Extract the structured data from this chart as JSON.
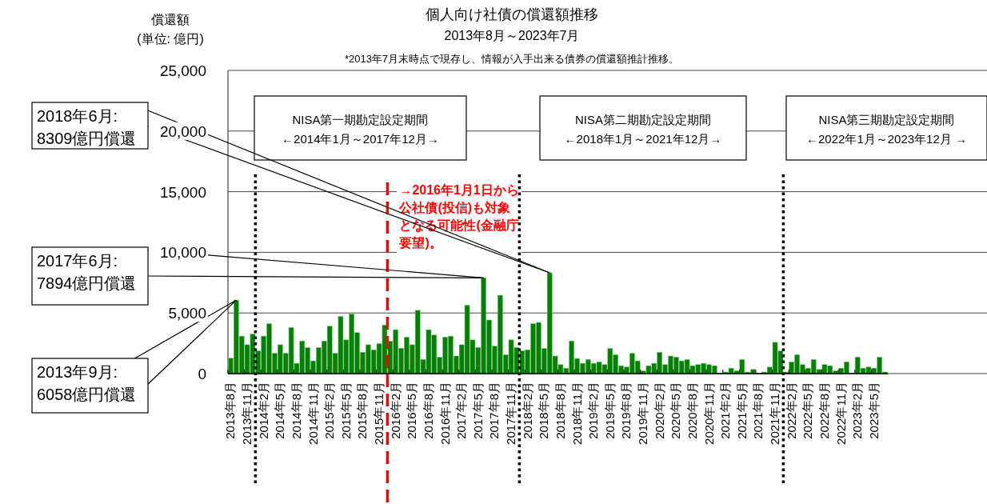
{
  "chart_data": {
    "type": "bar",
    "title": "個人向け社債の償還額推移",
    "subtitle": "2013年8月～2023年7月",
    "ylabel": "償還額\n(単位: 億円)",
    "annotations": [
      "*2013年7月末時点で現存し、情報が入手出来る債券の償還額推計推移。",
      "NISA第一期勘定設定期間\n←2014年1月～2017年12月→",
      "NISA第二期勘定設定期間\n←2018年1月～2021年12月→",
      "NISA第三期勘定設定期間\n←2022年1月～2023年12月 →",
      {
        "text": "2018年6月:\n8309億円償還",
        "x": "2018-06",
        "y": 8309
      },
      {
        "text": "2017年6月:\n7894億円償還",
        "x": "2017-06",
        "y": 7894
      },
      {
        "text": "2013年9月:\n6058億円償還",
        "x": "2013-09",
        "y": 6058
      }
    ],
    "x": [
      "2013-08",
      "2013-09",
      "2013-10",
      "2013-11",
      "2013-12",
      "2014-01",
      "2014-02",
      "2014-03",
      "2014-04",
      "2014-05",
      "2014-06",
      "2014-07",
      "2014-08",
      "2014-09",
      "2014-10",
      "2014-11",
      "2014-12",
      "2015-01",
      "2015-02",
      "2015-03",
      "2015-04",
      "2015-05",
      "2015-06",
      "2015-07",
      "2015-08",
      "2015-09",
      "2015-10",
      "2015-11",
      "2015-12",
      "2016-01",
      "2016-02",
      "2016-03",
      "2016-04",
      "2016-05",
      "2016-06",
      "2016-07",
      "2016-08",
      "2016-09",
      "2016-10",
      "2016-11",
      "2016-12",
      "2017-01",
      "2017-02",
      "2017-03",
      "2017-04",
      "2017-05",
      "2017-06",
      "2017-07",
      "2017-08",
      "2017-09",
      "2017-10",
      "2017-11",
      "2017-12",
      "2018-01",
      "2018-02",
      "2018-03",
      "2018-04",
      "2018-05",
      "2018-06",
      "2018-07",
      "2018-08",
      "2018-09",
      "2018-10",
      "2018-11",
      "2018-12",
      "2019-01",
      "2019-02",
      "2019-03",
      "2019-04",
      "2019-05",
      "2019-06",
      "2019-07",
      "2019-08",
      "2019-09",
      "2019-10",
      "2019-11",
      "2019-12",
      "2020-01",
      "2020-02",
      "2020-03",
      "2020-04",
      "2020-05",
      "2020-06",
      "2020-07",
      "2020-08",
      "2020-09",
      "2020-10",
      "2020-11",
      "2020-12",
      "2021-01",
      "2021-02",
      "2021-03",
      "2021-04",
      "2021-05",
      "2021-06",
      "2021-07",
      "2021-08",
      "2021-09",
      "2021-10",
      "2021-11",
      "2021-12",
      "2022-01",
      "2022-02",
      "2022-03",
      "2022-04",
      "2022-05",
      "2022-06",
      "2022-07",
      "2022-08",
      "2022-09",
      "2022-10",
      "2022-11",
      "2022-12",
      "2023-01",
      "2023-02",
      "2023-03",
      "2023-04",
      "2023-05",
      "2023-06",
      "2023-07"
    ],
    "series": [
      {
        "color": "#008000",
        "values": [
          1270,
          6058,
          3090,
          2380,
          3260,
          1870,
          3090,
          4110,
          1670,
          2380,
          1670,
          3800,
          850,
          2690,
          2150,
          1050,
          2150,
          2690,
          3910,
          1670,
          4710,
          2780,
          4910,
          3380,
          1760,
          2380,
          1960,
          2470,
          4000,
          2670,
          3620,
          2090,
          3000,
          2380,
          5220,
          1160,
          3620,
          3180,
          1360,
          3000,
          3090,
          1450,
          2380,
          5640,
          2780,
          2150,
          7894,
          4420,
          2270,
          6460,
          1560,
          2780,
          2150,
          1870,
          1960,
          4110,
          4220,
          2070,
          8309,
          1450,
          740,
          450,
          2690,
          1250,
          850,
          1160,
          850,
          960,
          740,
          2070,
          1560,
          650,
          540,
          1670,
          1050,
          220,
          650,
          850,
          1760,
          740,
          1450,
          1360,
          1050,
          1160,
          650,
          740,
          850,
          740,
          650,
          0,
          130,
          450,
          220,
          1160,
          130,
          340,
          0,
          130,
          540,
          2580,
          1870,
          130,
          960,
          1560,
          740,
          450,
          1160,
          340,
          740,
          650,
          220,
          450,
          960,
          0,
          1360,
          450,
          540,
          450,
          1360,
          130
        ]
      }
    ],
    "xlim": [
      "2013-08",
      "2023-07"
    ],
    "xticks": [
      {
        "value": "2013-08",
        "label": "2013年8月"
      },
      {
        "value": "2013-11",
        "label": "2013年11月"
      },
      {
        "value": "2014-02",
        "label": "2014年2月"
      },
      {
        "value": "2014-05",
        "label": "2014年5月"
      },
      {
        "value": "2014-08",
        "label": "2014年8月"
      },
      {
        "value": "2014-11",
        "label": "2014年11月"
      },
      {
        "value": "2015-02",
        "label": "2015年2月"
      },
      {
        "value": "2015-05",
        "label": "2015年5月"
      },
      {
        "value": "2015-08",
        "label": "2015年8月"
      },
      {
        "value": "2015-11",
        "label": "2015年11月"
      },
      {
        "value": "2016-02",
        "label": "2016年2月"
      },
      {
        "value": "2016-05",
        "label": "2016年5月"
      },
      {
        "value": "2016-08",
        "label": "2016年8月"
      },
      {
        "value": "2016-11",
        "label": "2016年11月"
      },
      {
        "value": "2017-02",
        "label": "2017年2月"
      },
      {
        "value": "2017-05",
        "label": "2017年5月"
      },
      {
        "value": "2017-08",
        "label": "2017年8月"
      },
      {
        "value": "2017-11",
        "label": "2017年11月"
      },
      {
        "value": "2018-02",
        "label": "2018年2月"
      },
      {
        "value": "2018-05",
        "label": "2018年5月"
      },
      {
        "value": "2018-08",
        "label": "2018年8月"
      },
      {
        "value": "2018-11",
        "label": "2018年11月"
      },
      {
        "value": "2019-02",
        "label": "2019年2月"
      },
      {
        "value": "2019-05",
        "label": "2019年5月"
      },
      {
        "value": "2019-08",
        "label": "2019年8月"
      },
      {
        "value": "2019-11",
        "label": "2019年11月"
      },
      {
        "value": "2020-02",
        "label": "2020年2月"
      },
      {
        "value": "2020-05",
        "label": "2020年5月"
      },
      {
        "value": "2020-08",
        "label": "2020年8月"
      },
      {
        "value": "2020-11",
        "label": "2020年11月"
      },
      {
        "value": "2021-02",
        "label": "2021年2月"
      },
      {
        "value": "2021-05",
        "label": "2021年5月"
      },
      {
        "value": "2021-08",
        "label": "2021年8月"
      },
      {
        "value": "2021-11",
        "label": "2021年11月"
      },
      {
        "value": "2022-02",
        "label": "2022年2月"
      },
      {
        "value": "2022-05",
        "label": "2022年5月"
      },
      {
        "value": "2022-08",
        "label": "2022年8月"
      },
      {
        "value": "2022-11",
        "label": "2022年11月"
      },
      {
        "value": "2023-02",
        "label": "2023年2月"
      },
      {
        "value": "2023-05",
        "label": "2023年5月"
      }
    ],
    "ylim": [
      0,
      25000
    ],
    "yticks": [
      0,
      {
        "value": 5000,
        "label": "5,000"
      },
      {
        "value": 10000,
        "label": "10,000"
      },
      {
        "value": 15000,
        "label": "15,000"
      },
      {
        "value": 20000,
        "label": "20,000"
      },
      {
        "value": 25000,
        "label": "25,000"
      }
    ],
    "grid": "y",
    "ref_lines": [
      {
        "axis": "x",
        "value": "2014-01",
        "color": "#000000",
        "line_style": "dotted"
      },
      {
        "axis": "x",
        "value": "2016-01",
        "color": "#ff0000",
        "line_style": "dashed",
        "label": "→2016年1月1日から公社債(投信)も対象となる可能性(金融庁要望)。"
      },
      {
        "axis": "x",
        "value": "2018-01",
        "color": "#000000",
        "line_style": "dotted"
      },
      {
        "axis": "x",
        "value": "2022-01",
        "color": "#000000",
        "line_style": "dotted"
      }
    ]
  }
}
